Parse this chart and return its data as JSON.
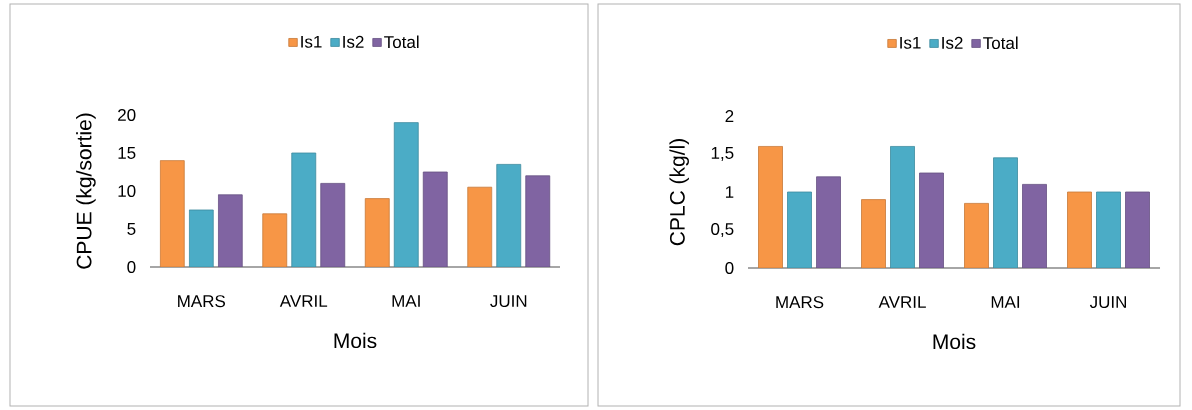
{
  "chart_data": [
    {
      "type": "bar",
      "xlabel": "Mois",
      "ylabel": "CPUE (kg/sortie)",
      "categories": [
        "MARS",
        "AVRIL",
        "MAI",
        "JUIN"
      ],
      "ylim": [
        0,
        20
      ],
      "yticks": [
        0,
        5,
        10,
        15,
        20
      ],
      "legend": "top",
      "series": [
        {
          "name": "Is1",
          "color": "#f79646",
          "values": [
            14,
            7,
            9,
            10.5
          ]
        },
        {
          "name": "Is2",
          "color": "#4bacc6",
          "values": [
            7.5,
            15,
            19,
            13.5
          ]
        },
        {
          "name": "Total",
          "color": "#8064a2",
          "values": [
            9.5,
            11,
            12.5,
            12
          ]
        }
      ]
    },
    {
      "type": "bar",
      "xlabel": "Mois",
      "ylabel": "CPLC (kg/l)",
      "categories": [
        "MARS",
        "AVRIL",
        "MAI",
        "JUIN"
      ],
      "ylim": [
        0,
        2
      ],
      "yticks": [
        0,
        {
          "value": 0.5,
          "label": "0,5"
        },
        1,
        {
          "value": 1.5,
          "label": "1,5"
        },
        2
      ],
      "legend": "top",
      "series": [
        {
          "name": "Is1",
          "color": "#f79646",
          "values": [
            1.6,
            0.9,
            0.85,
            1.0
          ]
        },
        {
          "name": "Is2",
          "color": "#4bacc6",
          "values": [
            1.0,
            1.6,
            1.45,
            1.0
          ]
        },
        {
          "name": "Total",
          "color": "#8064a2",
          "values": [
            1.2,
            1.25,
            1.1,
            1.0
          ]
        }
      ]
    }
  ]
}
